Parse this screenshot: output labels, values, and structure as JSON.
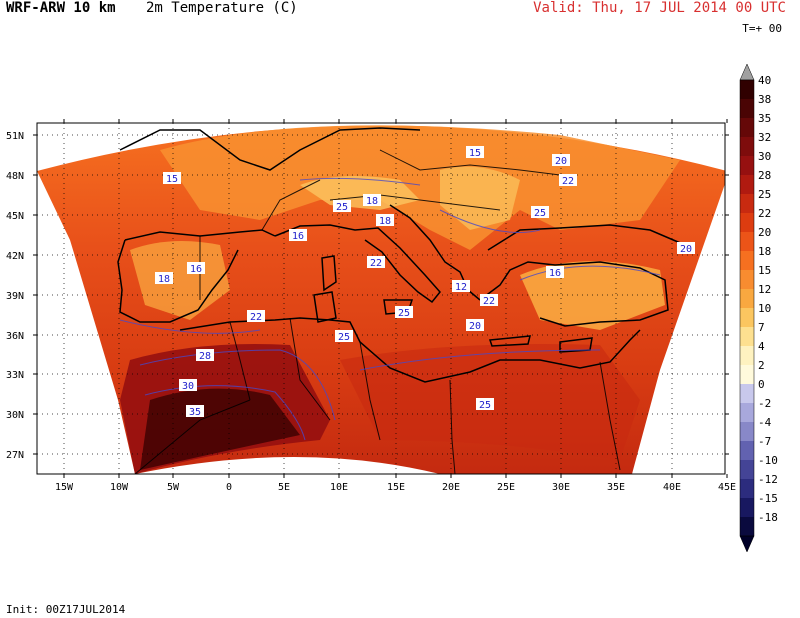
{
  "header": {
    "model": "WRF-ARW 10 km",
    "field": "2m Temperature (C)",
    "valid": "Valid: Thu, 17 JUL 2014 00 UTC",
    "forecast": "T=+ 00"
  },
  "footer": {
    "init": "Init: 00Z17JUL2014"
  },
  "map": {
    "lat_labels": [
      "51N",
      "48N",
      "45N",
      "42N",
      "39N",
      "36N",
      "33N",
      "30N",
      "27N"
    ],
    "lon_labels": [
      "15W",
      "10W",
      "5W",
      "0",
      "5E",
      "10E",
      "15E",
      "20E",
      "25E",
      "30E",
      "35E",
      "40E",
      "45E"
    ],
    "contour_labels": [
      "15",
      "15",
      "20",
      "22",
      "18",
      "16",
      "16",
      "25",
      "18",
      "18",
      "25",
      "20",
      "22",
      "16",
      "12",
      "22",
      "20",
      "25",
      "22",
      "25",
      "28",
      "30",
      "35",
      "25"
    ]
  },
  "colorbar": {
    "labels": [
      "40",
      "38",
      "35",
      "32",
      "30",
      "28",
      "25",
      "22",
      "20",
      "18",
      "15",
      "12",
      "10",
      "7",
      "4",
      "2",
      "0",
      "-2",
      "-4",
      "-7",
      "-10",
      "-12",
      "-15",
      "-18"
    ],
    "colors": [
      "#300000",
      "#4a0404",
      "#650808",
      "#7e0c0c",
      "#961010",
      "#b01a10",
      "#c82a10",
      "#dd3c10",
      "#ec5418",
      "#f67020",
      "#f88c30",
      "#f9a840",
      "#fbc660",
      "#fde090",
      "#fef2c0",
      "#fffadc",
      "#c8c8ec",
      "#a8a8dc",
      "#8888c8",
      "#6262b0",
      "#444496",
      "#2c2c7e",
      "#181860",
      "#0a0a3e"
    ],
    "arrow_top": "#a0a0a0",
    "arrow_bottom": "#000028"
  }
}
